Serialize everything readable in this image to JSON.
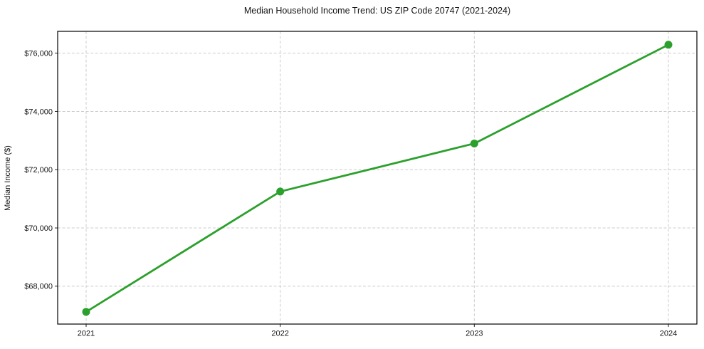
{
  "chart_data": {
    "type": "line",
    "title": "Median Household Income Trend: US ZIP Code 20747 (2021-2024)",
    "xlabel": "",
    "ylabel": "Median Income ($)",
    "x": [
      2021,
      2022,
      2023,
      2024
    ],
    "xtick_labels": [
      "2021",
      "2022",
      "2023",
      "2024"
    ],
    "series": [
      {
        "name": "Median Household Income",
        "values": [
          67120,
          71250,
          72900,
          76290
        ]
      }
    ],
    "yticks": [
      68000,
      70000,
      72000,
      74000,
      76000
    ],
    "ytick_labels": [
      "$68,000",
      "$70,000",
      "$72,000",
      "$74,000",
      "$76,000"
    ],
    "ylim": [
      66700,
      76750
    ],
    "grid": true,
    "grid_style": "dashed",
    "legend": "none",
    "line_color": "#2ca02c",
    "marker": "circle",
    "background_color": "#ffffff"
  }
}
